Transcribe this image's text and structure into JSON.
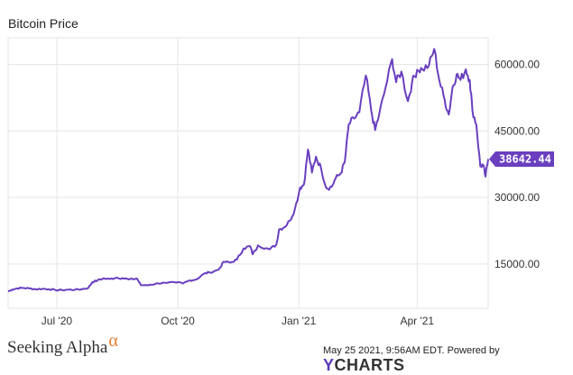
{
  "chart_data": {
    "type": "line",
    "title": "Bitcoin Price",
    "xlabel": "",
    "ylabel": "",
    "x_tick_labels": [
      "Jul '20",
      "Oct '20",
      "Jan '21",
      "Apr '21"
    ],
    "y_tick_labels": [
      "15000.00",
      "30000.00",
      "45000.00",
      "60000.00"
    ],
    "ylim": [
      5000,
      66000
    ],
    "grid": true,
    "series": [
      {
        "color": "#6a3fbf",
        "last_value_label": "38642.44",
        "x": [
          "2020-05-25",
          "2020-05-28",
          "2020-06-01",
          "2020-06-05",
          "2020-06-10",
          "2020-06-15",
          "2020-06-20",
          "2020-06-25",
          "2020-06-30",
          "2020-07-05",
          "2020-07-10",
          "2020-07-15",
          "2020-07-20",
          "2020-07-25",
          "2020-07-28",
          "2020-08-01",
          "2020-08-05",
          "2020-08-10",
          "2020-08-15",
          "2020-08-20",
          "2020-08-25",
          "2020-08-31",
          "2020-09-03",
          "2020-09-10",
          "2020-09-20",
          "2020-09-30",
          "2020-10-05",
          "2020-10-10",
          "2020-10-15",
          "2020-10-21",
          "2020-10-25",
          "2020-11-01",
          "2020-11-05",
          "2020-11-10",
          "2020-11-15",
          "2020-11-20",
          "2020-11-25",
          "2020-11-27",
          "2020-12-01",
          "2020-12-10",
          "2020-12-15",
          "2020-12-17",
          "2020-12-21",
          "2020-12-25",
          "2020-12-29",
          "2021-01-02",
          "2021-01-05",
          "2021-01-08",
          "2021-01-11",
          "2021-01-14",
          "2021-01-18",
          "2021-01-22",
          "2021-01-26",
          "2021-01-29",
          "2021-02-02",
          "2021-02-05",
          "2021-02-08",
          "2021-02-12",
          "2021-02-16",
          "2021-02-21",
          "2021-02-25",
          "2021-02-28",
          "2021-03-03",
          "2021-03-08",
          "2021-03-13",
          "2021-03-16",
          "2021-03-20",
          "2021-03-25",
          "2021-03-28",
          "2021-04-01",
          "2021-04-05",
          "2021-04-10",
          "2021-04-14",
          "2021-04-18",
          "2021-04-22",
          "2021-04-25",
          "2021-04-28",
          "2021-05-01",
          "2021-05-04",
          "2021-05-08",
          "2021-05-11",
          "2021-05-13",
          "2021-05-16",
          "2021-05-19",
          "2021-05-21",
          "2021-05-23",
          "2021-05-25"
        ],
        "y": [
          8800,
          9200,
          9500,
          9600,
          9500,
          9300,
          9400,
          9300,
          9100,
          9100,
          9200,
          9200,
          9300,
          9600,
          10900,
          11300,
          11700,
          11600,
          11900,
          11800,
          11500,
          11700,
          10200,
          10300,
          10800,
          10800,
          10600,
          11300,
          11500,
          12800,
          13100,
          13700,
          15500,
          15300,
          16000,
          18500,
          19000,
          17200,
          19200,
          18300,
          19400,
          22800,
          23300,
          24700,
          27300,
          32200,
          33000,
          40800,
          35600,
          39200,
          36500,
          32100,
          32400,
          34300,
          35500,
          38000,
          46500,
          47800,
          49200,
          57500,
          49700,
          45200,
          48500,
          54800,
          61200,
          56000,
          58400,
          51700,
          55800,
          58800,
          58900,
          59800,
          63500,
          56200,
          51900,
          48700,
          55000,
          57700,
          56500,
          58900,
          56500,
          49700,
          46400,
          37000,
          37400,
          34700,
          38642.44
        ]
      }
    ]
  },
  "footer": {
    "timestamp": "May 25 2021, 9:56AM EDT.",
    "powered_by": "Powered by",
    "ycharts_y": "Y",
    "ycharts_rest": "CHARTS"
  },
  "brand": {
    "name": "Seeking Alpha",
    "alpha_symbol": "α"
  }
}
